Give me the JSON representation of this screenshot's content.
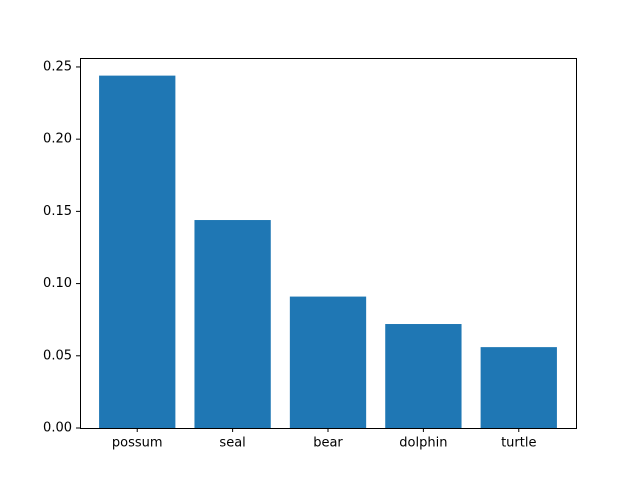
{
  "chart_data": {
    "type": "bar",
    "categories": [
      "possum",
      "seal",
      "bear",
      "dolphin",
      "turtle"
    ],
    "values": [
      0.244,
      0.144,
      0.091,
      0.072,
      0.056
    ],
    "title": "",
    "xlabel": "",
    "ylabel": "",
    "ylim": [
      0,
      0.2562
    ],
    "yticks": [
      0.0,
      0.05,
      0.1,
      0.15,
      0.2,
      0.25
    ],
    "ytick_labels": [
      "0.00",
      "0.05",
      "0.10",
      "0.15",
      "0.20",
      "0.25"
    ],
    "grid": false,
    "legend": "none",
    "colors": {
      "bar": "#1f77b4",
      "axes": "#000000",
      "background": "#ffffff"
    }
  }
}
